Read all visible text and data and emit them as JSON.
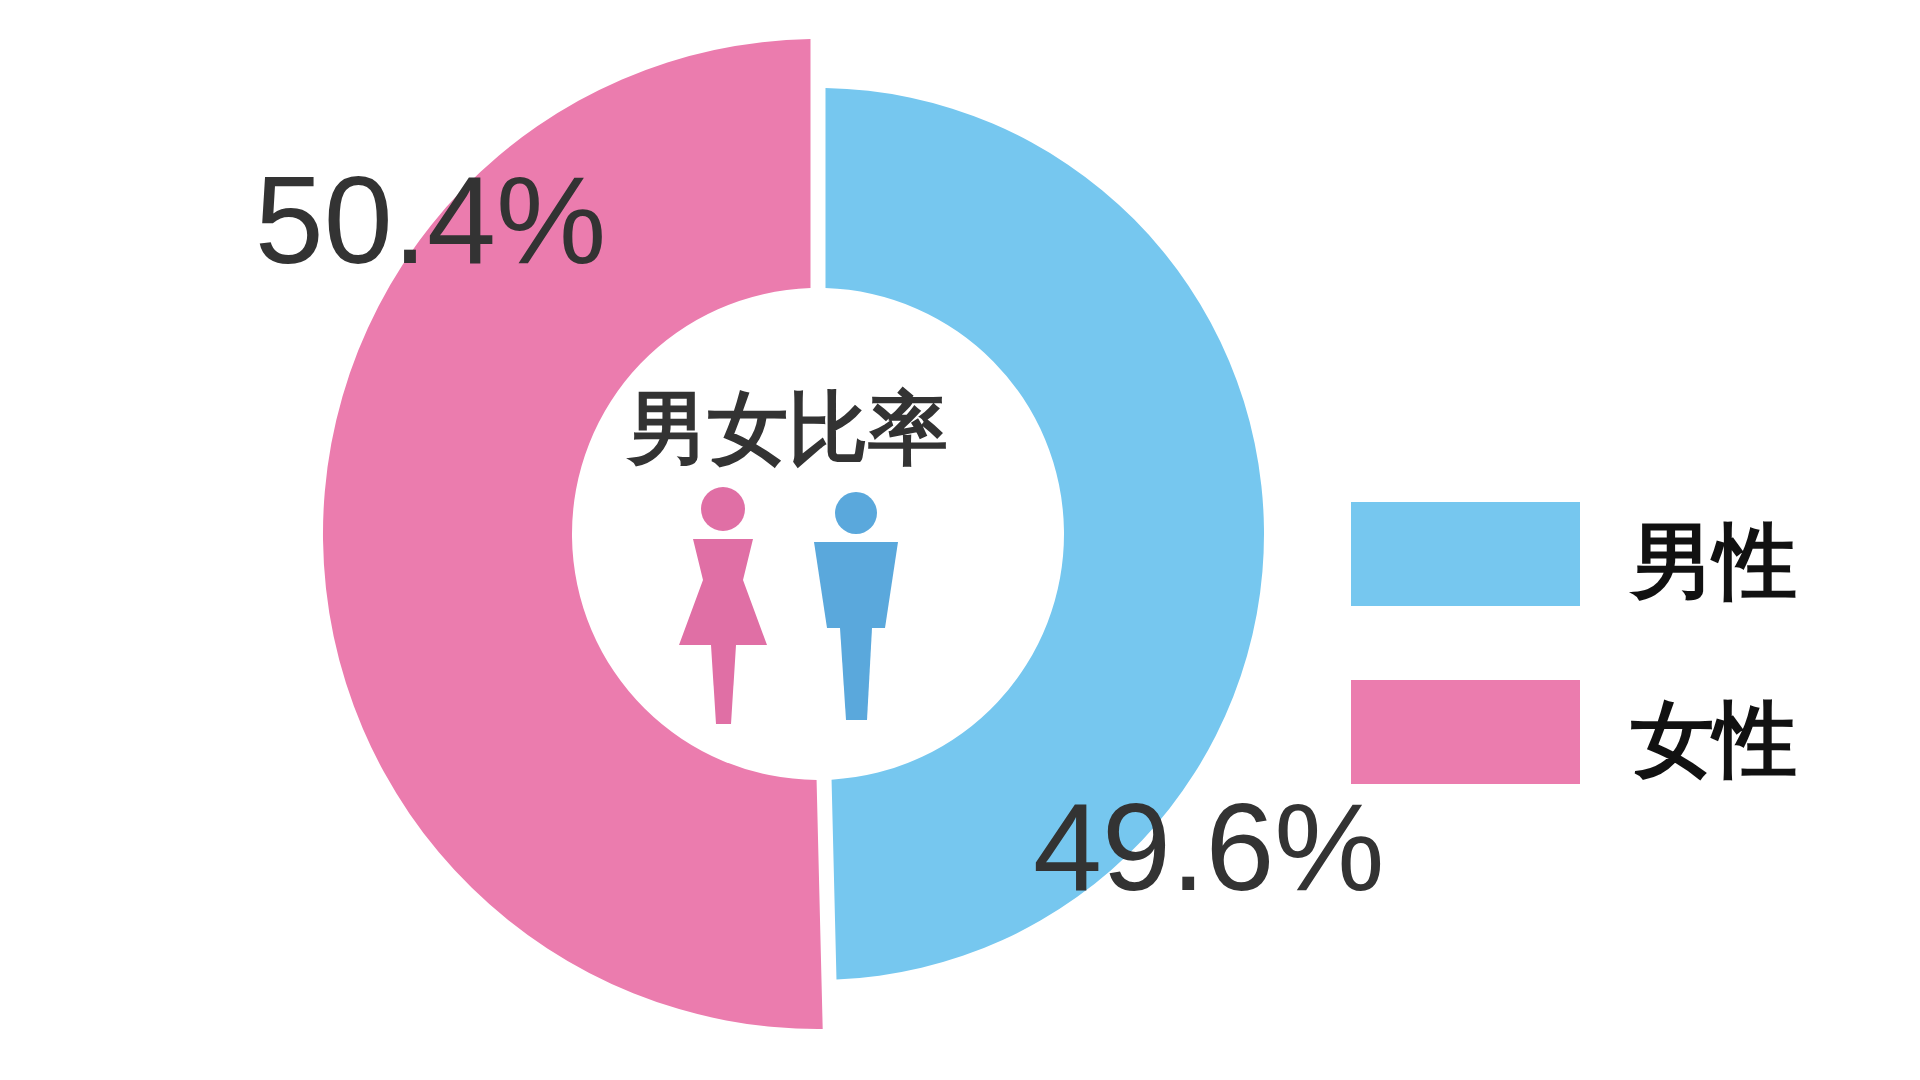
{
  "chart_data": {
    "type": "donut",
    "title": "男女比率",
    "categories": [
      "男性",
      "女性"
    ],
    "values": [
      49.6,
      50.4
    ],
    "colors": [
      "#76c7ef",
      "#eb7cae"
    ],
    "value_labels": [
      "49.6%",
      "50.4%"
    ],
    "legend": "right"
  }
}
